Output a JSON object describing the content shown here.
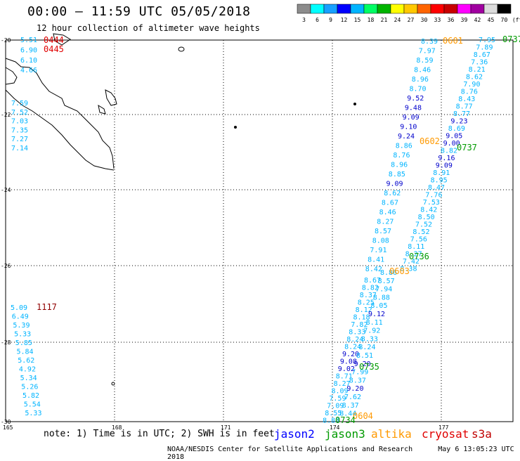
{
  "title": "00:00 – 11:59 UTC 05/05/2018",
  "subtitle": "12 hour collection of altimeter wave heights",
  "colorbar": {
    "colors": [
      "#8c8c8c",
      "#00ffff",
      "#18a0ff",
      "#0000ff",
      "#00b4ff",
      "#00ff64",
      "#00b400",
      "#ffff00",
      "#ffc800",
      "#ff6400",
      "#ff0000",
      "#c80000",
      "#ff00ff",
      "#a000a0",
      "#dcdcdc",
      "#000000"
    ],
    "labels": [
      "3",
      "6",
      "9",
      "12",
      "15",
      "18",
      "21",
      "24",
      "27",
      "30",
      "33",
      "36",
      "39",
      "42",
      "45",
      "70",
      "(ft)"
    ]
  },
  "axes": {
    "lat_labels": [
      "-20",
      "-22",
      "-24",
      "-26",
      "-28",
      "-30"
    ],
    "lon_labels": [
      "165",
      "168",
      "171",
      "174",
      "177"
    ]
  },
  "note": "note: 1) Time is in UTC; 2) SWH is in feet",
  "satellites": [
    {
      "name": "jason2",
      "color": "#0000ff"
    },
    {
      "name": "jason3",
      "color": "#009a00"
    },
    {
      "name": "altika",
      "color": "#ff9900"
    },
    {
      "name": "cryosat",
      "color": "#e00000"
    },
    {
      "name": "s3a",
      "color": "#c00000"
    }
  ],
  "credit": "NOAA/NESDIS Center for Satellite Applications and Research",
  "timestamp": "May  6 13:05:23 UTC 2018",
  "time_labels": [
    {
      "text": "0444",
      "color": "#e00000"
    },
    {
      "text": "0445",
      "color": "#e00000"
    },
    {
      "text": "1117",
      "color": "#900000"
    },
    {
      "text": "0601",
      "color": "#ff9900"
    },
    {
      "text": "0737",
      "color": "#009a00"
    },
    {
      "text": "0602",
      "color": "#ff9900"
    },
    {
      "text": "0737",
      "color": "#009a00"
    },
    {
      "text": "0736",
      "color": "#009a00"
    },
    {
      "text": "0603",
      "color": "#ff9900"
    },
    {
      "text": "0735",
      "color": "#009a00"
    },
    {
      "text": "0604",
      "color": "#ff9900"
    },
    {
      "text": "0734",
      "color": "#009a00"
    }
  ],
  "tracks": {
    "s3a_west_a": [
      "5.51",
      "6.90",
      "6.10",
      "4.66"
    ],
    "s3a_west_b": [
      "7.59",
      "7.52",
      "7.03",
      "7.35",
      "7.27",
      "7.14"
    ],
    "cryosat_west": [
      "5.09",
      "6.49",
      "5.39",
      "5.33",
      "5.85",
      "5.84",
      "5.62",
      "4.92",
      "5.34",
      "5.26",
      "5.82",
      "5.54",
      "5.33"
    ],
    "altika_top": [
      "8.39",
      "7.97",
      "8.59",
      "8.46",
      "8.96",
      "8.70",
      "9.52",
      "9.48",
      "9.09",
      "9.10",
      "9.24",
      "8.86",
      "8.76",
      "8.96",
      "8.85",
      "9.09",
      "8.62",
      "8.67",
      "8.46",
      "8.27",
      "8.57",
      "8.08",
      "7.91",
      "8.41",
      "8.42"
    ],
    "jason3_top": [
      "7.95",
      "7.89",
      "8.67",
      "7.36",
      "8.21",
      "8.62",
      "7.90",
      "8.76",
      "8.43",
      "8.77",
      "8.77",
      "9.23",
      "8.69",
      "9.05",
      "9.00",
      "8.82",
      "9.16",
      "9.09",
      "8.91",
      "8.95",
      "8.47",
      "7.76",
      "7.53",
      "8.42",
      "8.50",
      "7.52",
      "8.52",
      "7.56",
      "8.11",
      "8.27",
      "7.42",
      "8.38"
    ],
    "altika_bottom": [
      "8.67",
      "8.82",
      "8.37",
      "8.25",
      "8.12",
      "8.18",
      "7.82",
      "8.33",
      "8.24",
      "8.24",
      "9.20",
      "9.08",
      "9.02",
      "8.71",
      "8.27",
      "8.09",
      "7.59",
      "7.09",
      "8.55",
      "8.88"
    ],
    "jason3_bottom": [
      "8.86",
      "8.57",
      "7.94",
      "8.88",
      "8.05",
      "9.12",
      "8.11",
      "7.92",
      "8.33",
      "8.24",
      "8.51",
      "9.20",
      "7.99",
      "8.37",
      "9.20",
      "7.62",
      "8.37",
      "8.44"
    ]
  }
}
